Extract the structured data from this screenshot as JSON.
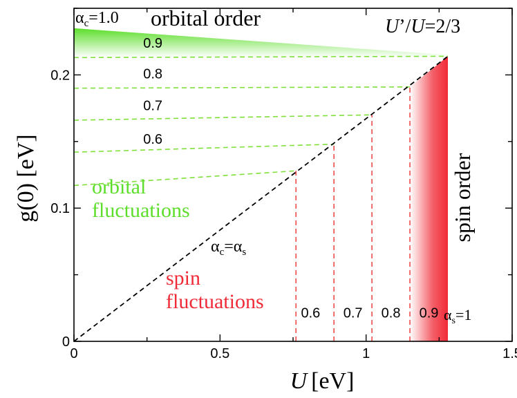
{
  "chart_data": {
    "type": "line",
    "xlabel_var": "U",
    "xlabel_unit": "[eV]",
    "ylabel": "g(0) [eV]",
    "xlim": [
      0,
      1.5
    ],
    "ylim": [
      0,
      0.25
    ],
    "x_ticks": [
      0,
      0.5,
      1,
      1.5
    ],
    "x_tick_labels": [
      "0",
      "0.5",
      "1",
      "1.5"
    ],
    "y_ticks": [
      0,
      0.1,
      0.2
    ],
    "y_tick_labels": [
      "0",
      "0.1",
      "0.2"
    ],
    "boundary_line": {
      "label_alpha": "α",
      "label_c": "c",
      "label_eq": "=α",
      "label_s": "s",
      "points": [
        [
          0,
          0
        ],
        [
          1.28,
          0.214
        ]
      ]
    },
    "orbital_order_edge": [
      [
        0,
        0.235
      ],
      [
        1.28,
        0.214
      ]
    ],
    "spin_order_edge_U": 1.28,
    "alpha_c_contours": [
      {
        "label": "0.9",
        "points": [
          [
            0,
            0.213
          ],
          [
            1.28,
            0.214
          ]
        ],
        "label_at": [
          0.27,
          0.224
        ]
      },
      {
        "label": "0.8",
        "points": [
          [
            0,
            0.19
          ],
          [
            1.15,
            0.191
          ]
        ],
        "label_at": [
          0.27,
          0.201
        ]
      },
      {
        "label": "0.7",
        "points": [
          [
            0,
            0.166
          ],
          [
            1.02,
            0.17
          ]
        ],
        "label_at": [
          0.27,
          0.177
        ]
      },
      {
        "label": "0.6",
        "points": [
          [
            0,
            0.142
          ],
          [
            0.89,
            0.148
          ]
        ],
        "label_at": [
          0.27,
          0.152
        ]
      },
      {
        "label": "",
        "points": [
          [
            0,
            0.117
          ],
          [
            0.76,
            0.128
          ]
        ],
        "label_at": null
      }
    ],
    "alpha_s_contours": [
      {
        "label": "0.6",
        "U": 0.76,
        "g_top": 0.128,
        "label_at": [
          0.81,
          0.018
        ]
      },
      {
        "label": "0.7",
        "U": 0.89,
        "g_top": 0.148,
        "label_at": [
          0.955,
          0.018
        ]
      },
      {
        "label": "0.8",
        "U": 1.02,
        "g_top": 0.17,
        "label_at": [
          1.085,
          0.018
        ]
      },
      {
        "label": "0.9",
        "U": 1.15,
        "g_top": 0.191,
        "label_at": [
          1.215,
          0.018
        ]
      }
    ],
    "alpha_c_top_label": {
      "alpha": "α",
      "sub": "c",
      "rest": "=1.0"
    },
    "alpha_s_edge_label": {
      "alpha": "α",
      "sub": "s",
      "rest": "=1"
    },
    "region_labels": {
      "orbital_order": "orbital order",
      "ratio_a": "U",
      "ratio_b": "’/",
      "ratio_c": "U",
      "ratio_d": "=2/3",
      "spin_order": "spin order",
      "orbital_fluct_1": "orbital",
      "orbital_fluct_2": "fluctuations",
      "spin_fluct_1": "spin",
      "spin_fluct_2": "fluctuations"
    },
    "colors": {
      "orbital": "#5cde2a",
      "spin": "#f02a36",
      "orbital_dash": "#7fe03a",
      "spin_dash": "#f04a4a",
      "axis": "#000000"
    }
  }
}
